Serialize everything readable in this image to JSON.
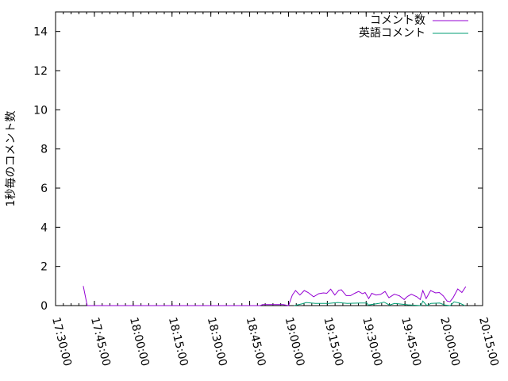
{
  "chart_data": {
    "type": "line",
    "title": "",
    "xlabel": "",
    "ylabel": "1秒毎のコメント数",
    "xlim": [
      "17:30:00",
      "20:15:00"
    ],
    "ylim": [
      0,
      15
    ],
    "xticks": [
      "17:30:00",
      "17:45:00",
      "18:00:00",
      "18:15:00",
      "18:30:00",
      "18:45:00",
      "19:00:00",
      "19:15:00",
      "19:30:00",
      "19:45:00",
      "20:00:00",
      "20:15:00"
    ],
    "yticks": [
      "0",
      "2",
      "4",
      "6",
      "8",
      "10",
      "12",
      "14"
    ],
    "grid": false,
    "legend": "top-right",
    "series": [
      {
        "name": "コメント数",
        "color": "#9400d3",
        "points": [
          [
            "17:40:43",
            1
          ],
          [
            "17:42:15",
            0
          ],
          [
            "18:49:00",
            0
          ],
          [
            "18:50:00",
            0.05
          ],
          [
            "18:58:00",
            0.05
          ],
          [
            "19:00:00",
            0
          ],
          [
            "19:01:30",
            0.54
          ],
          [
            "19:02:42",
            0.77
          ],
          [
            "19:04:24",
            0.54
          ],
          [
            "19:06:06",
            0.77
          ],
          [
            "19:07:36",
            0.67
          ],
          [
            "19:09:42",
            0.45
          ],
          [
            "19:11:42",
            0.61
          ],
          [
            "19:13:30",
            0.65
          ],
          [
            "19:14:48",
            0.63
          ],
          [
            "19:16:18",
            0.84
          ],
          [
            "19:17:54",
            0.54
          ],
          [
            "19:19:24",
            0.78
          ],
          [
            "19:20:24",
            0.81
          ],
          [
            "19:22:18",
            0.51
          ],
          [
            "19:24:00",
            0.51
          ],
          [
            "19:25:36",
            0.63
          ],
          [
            "19:27:06",
            0.72
          ],
          [
            "19:28:36",
            0.61
          ],
          [
            "19:29:36",
            0.67
          ],
          [
            "19:31:00",
            0.36
          ],
          [
            "19:32:12",
            0.63
          ],
          [
            "19:33:48",
            0.54
          ],
          [
            "19:35:36",
            0.57
          ],
          [
            "19:37:18",
            0.72
          ],
          [
            "19:38:48",
            0.4
          ],
          [
            "19:40:54",
            0.58
          ],
          [
            "19:42:54",
            0.5
          ],
          [
            "19:44:42",
            0.31
          ],
          [
            "19:46:00",
            0.47
          ],
          [
            "19:47:30",
            0.58
          ],
          [
            "19:49:36",
            0.45
          ],
          [
            "19:50:54",
            0.31
          ],
          [
            "19:51:54",
            0.77
          ],
          [
            "19:53:12",
            0.36
          ],
          [
            "19:54:54",
            0.77
          ],
          [
            "19:56:48",
            0.65
          ],
          [
            "19:58:18",
            0.67
          ],
          [
            "19:59:48",
            0.5
          ],
          [
            "20:01:18",
            0.23
          ],
          [
            "20:02:24",
            0.2
          ],
          [
            "20:03:36",
            0.4
          ],
          [
            "20:05:24",
            0.85
          ],
          [
            "20:07:00",
            0.67
          ],
          [
            "20:08:30",
            0.97
          ]
        ]
      },
      {
        "name": "英語コメント",
        "color": "#009e73",
        "points": [
          [
            "19:02:12",
            0
          ],
          [
            "19:05:18",
            0.09
          ],
          [
            "19:06:48",
            0.16
          ],
          [
            "19:10:24",
            0.11
          ],
          [
            "19:15:30",
            0.11
          ],
          [
            "19:19:06",
            0.16
          ],
          [
            "19:22:42",
            0.11
          ],
          [
            "19:27:48",
            0.13
          ],
          [
            "19:30:18",
            0.13
          ],
          [
            "19:30:48",
            0.03
          ],
          [
            "19:34:54",
            0.11
          ],
          [
            "19:36:54",
            0.18
          ],
          [
            "19:39:00",
            0.03
          ],
          [
            "19:41:00",
            0.11
          ],
          [
            "19:46:06",
            0.04
          ],
          [
            "19:51:12",
            0
          ],
          [
            "19:51:54",
            0.23
          ],
          [
            "19:53:30",
            0
          ],
          [
            "19:55:00",
            0.11
          ],
          [
            "19:58:24",
            0.13
          ],
          [
            "20:00:24",
            0.03
          ],
          [
            "20:02:30",
            0
          ],
          [
            "20:04:00",
            0.19
          ],
          [
            "20:06:06",
            0.13
          ],
          [
            "20:08:06",
            0
          ]
        ]
      }
    ]
  }
}
